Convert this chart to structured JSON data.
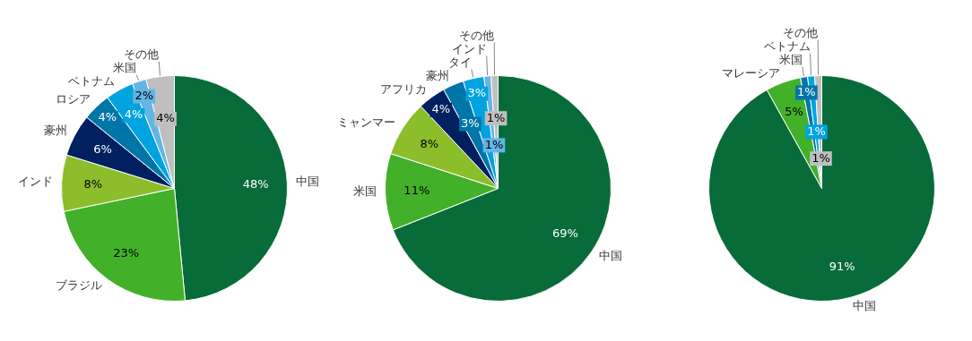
{
  "chart_data": [
    {
      "type": "pie",
      "categories": [
        "中国",
        "ブラジル",
        "インド",
        "豪州",
        "ロシア",
        "ベトナム",
        "米国",
        "その他"
      ],
      "values": [
        48,
        23,
        8,
        6,
        4,
        4,
        2,
        4
      ],
      "value_labels": [
        "48%",
        "23%",
        "8%",
        "6%",
        "4%",
        "4%",
        "2%",
        "4%"
      ],
      "colors": [
        "#076b3a",
        "#43b02a",
        "#8cbd2a",
        "#002060",
        "#0076a8",
        "#00a3e0",
        "#62b5e5",
        "#bfbfbf"
      ],
      "legend": false
    },
    {
      "type": "pie",
      "categories": [
        "中国",
        "米国",
        "ミャンマー",
        "アフリカ",
        "豪州",
        "タイ",
        "インド",
        "その他"
      ],
      "values": [
        69,
        11,
        8,
        4,
        3,
        3,
        1,
        1
      ],
      "value_labels": [
        "69%",
        "11%",
        "8%",
        "4%",
        "3%",
        "3%",
        "1%",
        "1%"
      ],
      "colors": [
        "#076b3a",
        "#43b02a",
        "#8cbd2a",
        "#002060",
        "#0076a8",
        "#00a3e0",
        "#62b5e5",
        "#bfbfbf"
      ],
      "legend": false
    },
    {
      "type": "pie",
      "categories": [
        "中国",
        "マレーシア",
        "米国",
        "ベトナム",
        "その他"
      ],
      "values": [
        91,
        5,
        1,
        1,
        1
      ],
      "value_labels": [
        "91%",
        "5%",
        "1%",
        "1%",
        "1%"
      ],
      "colors": [
        "#076b3a",
        "#43b02a",
        "#0076a8",
        "#00a3e0",
        "#bfbfbf"
      ],
      "legend": false
    }
  ]
}
